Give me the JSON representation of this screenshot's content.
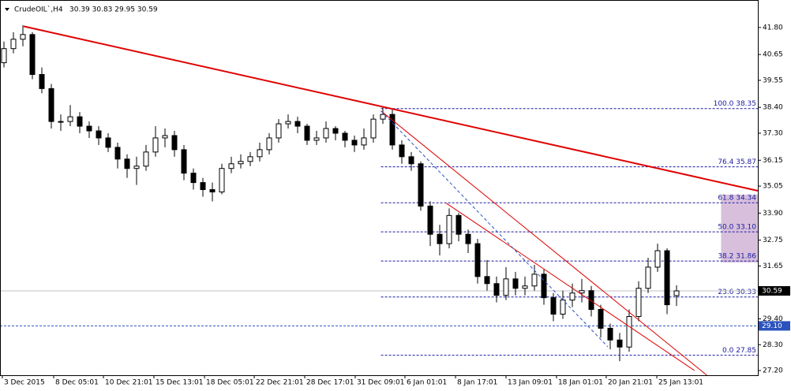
{
  "chart_data": {
    "type": "candlestick",
    "title": "CrudeOIL`,H4",
    "header_values": "30.39 30.83 29.95 30.59",
    "x": [
      0,
      1,
      2,
      3,
      4,
      5,
      6,
      7,
      8,
      9,
      10,
      11,
      12,
      13,
      14,
      15,
      16,
      17,
      18,
      19,
      20,
      21,
      22,
      23,
      24,
      25,
      26,
      27,
      28,
      29,
      30,
      31,
      32,
      33,
      34,
      35,
      36,
      37,
      38,
      39,
      40,
      41,
      42,
      43,
      44,
      45,
      46,
      47,
      48,
      49,
      50,
      51,
      52,
      53,
      54,
      55,
      56,
      57,
      58,
      59,
      60,
      61,
      62,
      63,
      64,
      65,
      66,
      67,
      68,
      69,
      70,
      71
    ],
    "open": [
      40.3,
      40.9,
      41.3,
      41.5,
      39.8,
      39.2,
      37.8,
      37.8,
      38.0,
      37.6,
      37.4,
      37.1,
      36.7,
      36.2,
      35.8,
      35.9,
      36.5,
      37.1,
      37.2,
      36.6,
      35.6,
      35.2,
      34.9,
      34.8,
      35.8,
      36.0,
      36.1,
      36.3,
      36.6,
      37.1,
      37.7,
      37.8,
      37.6,
      37.0,
      37.1,
      37.5,
      37.3,
      37.0,
      36.8,
      37.1,
      37.9,
      38.1,
      36.8,
      36.3,
      36.0,
      34.2,
      33.0,
      32.6,
      33.8,
      33.0,
      32.6,
      31.2,
      30.9,
      30.4,
      31.1,
      30.7,
      30.8,
      31.3,
      30.3,
      29.6,
      30.2,
      30.5,
      30.6,
      29.8,
      29.0,
      28.5,
      28.2,
      29.5,
      30.7,
      31.6,
      32.3,
      30.39
    ],
    "high": [
      41.2,
      41.6,
      41.9,
      41.6,
      40.1,
      39.4,
      38.1,
      38.5,
      38.2,
      37.8,
      37.6,
      37.3,
      36.9,
      36.4,
      36.3,
      36.8,
      37.6,
      37.5,
      37.4,
      36.8,
      35.8,
      35.4,
      35.2,
      36.0,
      36.3,
      36.4,
      36.5,
      36.9,
      37.3,
      37.9,
      38.1,
      38.0,
      37.7,
      37.4,
      37.8,
      37.6,
      37.4,
      37.2,
      37.5,
      38.1,
      38.4,
      38.3,
      37.0,
      36.5,
      36.1,
      34.4,
      33.4,
      34.1,
      33.9,
      33.2,
      32.8,
      31.9,
      31.2,
      31.6,
      31.4,
      31.2,
      31.7,
      31.5,
      30.5,
      30.6,
      30.9,
      31.1,
      30.8,
      30.0,
      29.2,
      28.8,
      29.8,
      31.0,
      32.0,
      32.6,
      32.4,
      30.83
    ],
    "low": [
      40.1,
      40.7,
      41.0,
      39.6,
      39.0,
      37.5,
      37.4,
      37.6,
      37.3,
      37.1,
      36.8,
      36.5,
      35.8,
      35.4,
      35.1,
      35.7,
      36.3,
      36.7,
      36.3,
      35.3,
      34.9,
      34.6,
      34.4,
      34.7,
      35.6,
      35.8,
      35.9,
      36.1,
      36.4,
      36.9,
      37.5,
      37.3,
      36.8,
      36.8,
      36.9,
      37.0,
      36.7,
      36.5,
      36.6,
      36.9,
      37.7,
      36.6,
      36.0,
      35.7,
      34.0,
      32.5,
      32.1,
      32.4,
      32.7,
      32.2,
      30.9,
      30.6,
      30.1,
      30.2,
      30.4,
      30.4,
      30.6,
      30.0,
      29.3,
      29.4,
      29.9,
      30.1,
      29.5,
      28.6,
      28.1,
      27.6,
      28.0,
      29.3,
      30.5,
      31.4,
      29.6,
      29.95
    ],
    "close": [
      40.9,
      41.3,
      41.5,
      39.8,
      39.2,
      37.8,
      37.8,
      38.0,
      37.6,
      37.4,
      37.1,
      36.7,
      36.2,
      35.8,
      35.9,
      36.5,
      37.1,
      37.2,
      36.6,
      35.6,
      35.2,
      34.9,
      34.8,
      35.8,
      36.0,
      36.1,
      36.3,
      36.6,
      37.1,
      37.7,
      37.8,
      37.6,
      37.0,
      37.1,
      37.5,
      37.3,
      37.0,
      36.8,
      37.1,
      37.9,
      38.1,
      36.8,
      36.3,
      36.0,
      34.2,
      33.0,
      32.6,
      33.8,
      33.0,
      32.6,
      31.2,
      30.9,
      30.4,
      31.1,
      30.7,
      30.8,
      31.3,
      30.3,
      29.6,
      30.2,
      30.5,
      30.6,
      29.8,
      29.0,
      28.5,
      28.2,
      29.5,
      30.7,
      31.6,
      32.3,
      30.0,
      30.59
    ],
    "xlim": [
      -0.4167,
      79.583
    ],
    "ylim": [
      27.0,
      42.97
    ],
    "yticks": [
      {
        "value": 41.8,
        "label": "41.80"
      },
      {
        "value": 40.65,
        "label": "40.65"
      },
      {
        "value": 39.55,
        "label": "39.55"
      },
      {
        "value": 38.4,
        "label": "38.40"
      },
      {
        "value": 37.3,
        "label": "37.30"
      },
      {
        "value": 36.15,
        "label": "36.15"
      },
      {
        "value": 35.05,
        "label": "35.05"
      },
      {
        "value": 33.9,
        "label": "33.90"
      },
      {
        "value": 32.75,
        "label": "32.75"
      },
      {
        "value": 31.65,
        "label": "31.65"
      },
      {
        "value": 29.4,
        "label": "29.40"
      },
      {
        "value": 28.3,
        "label": "28.30"
      },
      {
        "value": 27.2,
        "label": "27.20"
      }
    ],
    "xticks": [
      {
        "value": -0.17,
        "label": "3 Dec 2015"
      },
      {
        "value": 5.25,
        "label": "8 Dec 05:01"
      },
      {
        "value": 10.5,
        "label": "10 Dec 21:01"
      },
      {
        "value": 15.83,
        "label": "15 Dec 13:01"
      },
      {
        "value": 21.17,
        "label": "18 Dec 05:01"
      },
      {
        "value": 26.42,
        "label": "22 Dec 21:01"
      },
      {
        "value": 31.75,
        "label": "28 Dec 17:01"
      },
      {
        "value": 37.08,
        "label": "31 Dec 09:01"
      },
      {
        "value": 42.33,
        "label": "6 Jan 01:01"
      },
      {
        "value": 47.67,
        "label": "8 Jan 17:01"
      },
      {
        "value": 53.0,
        "label": "13 Jan 09:01"
      },
      {
        "value": 58.33,
        "label": "18 Jan 01:01"
      },
      {
        "value": 63.58,
        "label": "20 Jan 21:01"
      },
      {
        "value": 68.92,
        "label": "25 Jan 13:01"
      }
    ],
    "current_price": {
      "value": 30.59,
      "label": "30.59"
    },
    "hline": {
      "value": 29.1,
      "label": "29.10",
      "color": "#2a52be"
    },
    "fib_start": 39.8,
    "fib_levels": [
      {
        "value": 38.35,
        "label": "100.0 38.35"
      },
      {
        "value": 35.87,
        "label": "76.4 35.87"
      },
      {
        "value": 34.34,
        "label": "61.8 34.34"
      },
      {
        "value": 33.1,
        "label": "50.0 33.10"
      },
      {
        "value": 31.86,
        "label": "38.2 31.86"
      },
      {
        "value": 30.33,
        "label": "23.6 30.33"
      },
      {
        "value": 27.85,
        "label": "0.0 27.85"
      }
    ],
    "fib_color": "#1a1aa0",
    "zone": {
      "x": [
        75.7,
        79.583
      ],
      "y": [
        34.69,
        31.8
      ],
      "color": "#d8c0dc"
    },
    "trendlines": [
      {
        "x": [
          2.08,
          79.58
        ],
        "y": [
          41.85,
          34.85
        ],
        "color": "#e00000",
        "width": 2
      },
      {
        "x": [
          39.8,
          74.2
        ],
        "y": [
          38.25,
          27.0
        ],
        "color": "#e00000",
        "width": 1
      },
      {
        "x": [
          46.7,
          72.9
        ],
        "y": [
          34.32,
          27.2
        ],
        "color": "#e00000",
        "width": 1
      },
      {
        "x": [
          39.8,
          63.75
        ],
        "y": [
          38.25,
          28.21
        ],
        "color": "#2a52be",
        "width": 1,
        "dashed": true
      }
    ]
  }
}
